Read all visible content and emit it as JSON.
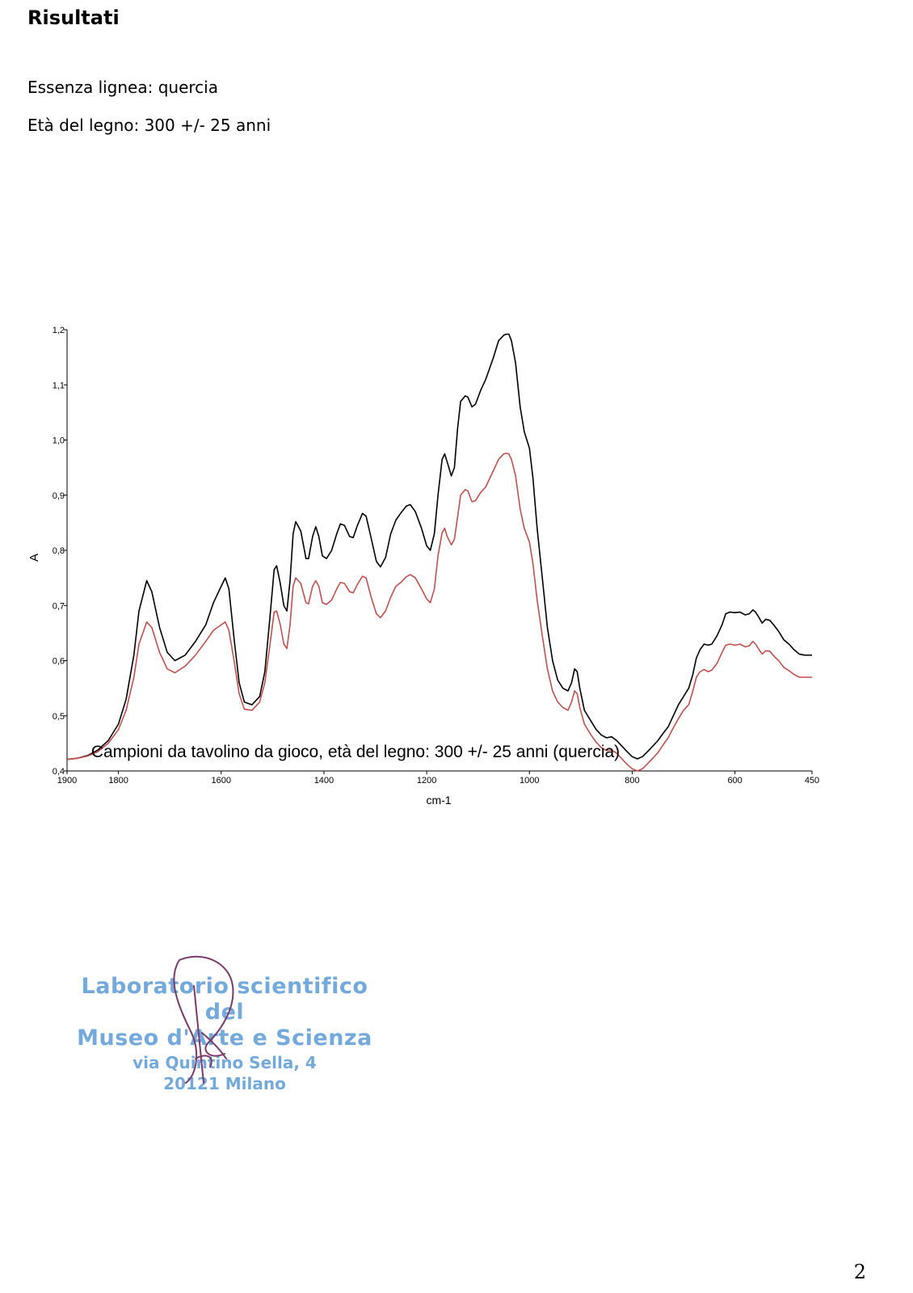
{
  "document": {
    "title": "Risultati",
    "lines": [
      "Essenza lignea: quercia",
      "Età del legno: 300 +/- 25 anni"
    ],
    "page_number": "2"
  },
  "stamp": {
    "line1": "Laboratorio scientifico del",
    "line2": "Museo d'Arte e Scienza",
    "line3": "via Quintino Sella, 4",
    "line4": "20121 Milano",
    "color": "#5b9bd5"
  },
  "chart_data": {
    "type": "line",
    "title": "Campioni da tavolino da gioco, età del legno: 300 +/- 25 anni (quercia)",
    "xlabel": "cm-1",
    "ylabel": "A",
    "xlim": [
      1900,
      450
    ],
    "ylim": [
      0.4,
      1.2
    ],
    "x_ticks": [
      1900,
      1800,
      1600,
      1400,
      1200,
      1000,
      800,
      600,
      450
    ],
    "y_ticks": [
      "0,4",
      "0,5",
      "0,6",
      "0,7",
      "0,8",
      "0,9",
      "1,0",
      "1,1",
      "1,2"
    ],
    "grid": false,
    "series": [
      {
        "color": "#000000",
        "points": [
          [
            1900,
            0.421
          ],
          [
            1880,
            0.423
          ],
          [
            1860,
            0.428
          ],
          [
            1840,
            0.438
          ],
          [
            1820,
            0.455
          ],
          [
            1800,
            0.485
          ],
          [
            1785,
            0.53
          ],
          [
            1770,
            0.61
          ],
          [
            1760,
            0.69
          ],
          [
            1745,
            0.745
          ],
          [
            1735,
            0.725
          ],
          [
            1720,
            0.66
          ],
          [
            1705,
            0.615
          ],
          [
            1690,
            0.6
          ],
          [
            1670,
            0.61
          ],
          [
            1650,
            0.635
          ],
          [
            1630,
            0.665
          ],
          [
            1615,
            0.705
          ],
          [
            1600,
            0.735
          ],
          [
            1592,
            0.75
          ],
          [
            1585,
            0.73
          ],
          [
            1575,
            0.64
          ],
          [
            1565,
            0.56
          ],
          [
            1555,
            0.525
          ],
          [
            1540,
            0.52
          ],
          [
            1525,
            0.535
          ],
          [
            1515,
            0.58
          ],
          [
            1505,
            0.68
          ],
          [
            1497,
            0.765
          ],
          [
            1492,
            0.772
          ],
          [
            1485,
            0.74
          ],
          [
            1478,
            0.7
          ],
          [
            1472,
            0.69
          ],
          [
            1466,
            0.745
          ],
          [
            1460,
            0.83
          ],
          [
            1455,
            0.852
          ],
          [
            1445,
            0.835
          ],
          [
            1435,
            0.785
          ],
          [
            1430,
            0.785
          ],
          [
            1422,
            0.825
          ],
          [
            1416,
            0.843
          ],
          [
            1410,
            0.825
          ],
          [
            1403,
            0.79
          ],
          [
            1395,
            0.785
          ],
          [
            1385,
            0.8
          ],
          [
            1375,
            0.83
          ],
          [
            1368,
            0.848
          ],
          [
            1360,
            0.845
          ],
          [
            1350,
            0.825
          ],
          [
            1343,
            0.823
          ],
          [
            1335,
            0.845
          ],
          [
            1325,
            0.867
          ],
          [
            1318,
            0.862
          ],
          [
            1308,
            0.822
          ],
          [
            1298,
            0.78
          ],
          [
            1290,
            0.77
          ],
          [
            1280,
            0.787
          ],
          [
            1270,
            0.83
          ],
          [
            1260,
            0.855
          ],
          [
            1250,
            0.868
          ],
          [
            1240,
            0.88
          ],
          [
            1232,
            0.883
          ],
          [
            1222,
            0.87
          ],
          [
            1210,
            0.84
          ],
          [
            1200,
            0.808
          ],
          [
            1193,
            0.8
          ],
          [
            1185,
            0.83
          ],
          [
            1178,
            0.9
          ],
          [
            1170,
            0.965
          ],
          [
            1165,
            0.975
          ],
          [
            1160,
            0.96
          ],
          [
            1152,
            0.935
          ],
          [
            1146,
            0.95
          ],
          [
            1140,
            1.02
          ],
          [
            1134,
            1.07
          ],
          [
            1125,
            1.08
          ],
          [
            1120,
            1.078
          ],
          [
            1112,
            1.06
          ],
          [
            1105,
            1.065
          ],
          [
            1095,
            1.09
          ],
          [
            1085,
            1.11
          ],
          [
            1070,
            1.15
          ],
          [
            1060,
            1.18
          ],
          [
            1050,
            1.19
          ],
          [
            1045,
            1.192
          ],
          [
            1040,
            1.192
          ],
          [
            1035,
            1.18
          ],
          [
            1027,
            1.14
          ],
          [
            1018,
            1.06
          ],
          [
            1010,
            1.015
          ],
          [
            1000,
            0.985
          ],
          [
            993,
            0.93
          ],
          [
            985,
            0.84
          ],
          [
            975,
            0.75
          ],
          [
            965,
            0.66
          ],
          [
            955,
            0.6
          ],
          [
            945,
            0.565
          ],
          [
            935,
            0.55
          ],
          [
            925,
            0.545
          ],
          [
            918,
            0.56
          ],
          [
            912,
            0.585
          ],
          [
            907,
            0.58
          ],
          [
            902,
            0.55
          ],
          [
            893,
            0.51
          ],
          [
            880,
            0.49
          ],
          [
            870,
            0.475
          ],
          [
            860,
            0.465
          ],
          [
            850,
            0.46
          ],
          [
            840,
            0.462
          ],
          [
            830,
            0.455
          ],
          [
            820,
            0.445
          ],
          [
            810,
            0.435
          ],
          [
            800,
            0.426
          ],
          [
            790,
            0.422
          ],
          [
            780,
            0.426
          ],
          [
            770,
            0.435
          ],
          [
            760,
            0.445
          ],
          [
            750,
            0.455
          ],
          [
            740,
            0.468
          ],
          [
            730,
            0.48
          ],
          [
            720,
            0.5
          ],
          [
            710,
            0.52
          ],
          [
            700,
            0.535
          ],
          [
            690,
            0.55
          ],
          [
            682,
            0.575
          ],
          [
            675,
            0.605
          ],
          [
            668,
            0.62
          ],
          [
            660,
            0.63
          ],
          [
            652,
            0.628
          ],
          [
            645,
            0.63
          ],
          [
            635,
            0.645
          ],
          [
            625,
            0.665
          ],
          [
            618,
            0.685
          ],
          [
            610,
            0.688
          ],
          [
            600,
            0.687
          ],
          [
            590,
            0.688
          ],
          [
            580,
            0.683
          ],
          [
            572,
            0.685
          ],
          [
            565,
            0.692
          ],
          [
            560,
            0.688
          ],
          [
            553,
            0.678
          ],
          [
            547,
            0.668
          ],
          [
            540,
            0.675
          ],
          [
            532,
            0.673
          ],
          [
            523,
            0.663
          ],
          [
            515,
            0.653
          ],
          [
            505,
            0.638
          ],
          [
            495,
            0.63
          ],
          [
            485,
            0.62
          ],
          [
            475,
            0.612
          ],
          [
            465,
            0.61
          ],
          [
            455,
            0.61
          ],
          [
            450,
            0.61
          ]
        ]
      },
      {
        "color": "#c0504d",
        "points": [
          [
            1900,
            0.421
          ],
          [
            1880,
            0.423
          ],
          [
            1860,
            0.427
          ],
          [
            1840,
            0.435
          ],
          [
            1820,
            0.45
          ],
          [
            1800,
            0.475
          ],
          [
            1785,
            0.51
          ],
          [
            1770,
            0.57
          ],
          [
            1760,
            0.63
          ],
          [
            1745,
            0.67
          ],
          [
            1735,
            0.66
          ],
          [
            1720,
            0.615
          ],
          [
            1705,
            0.585
          ],
          [
            1690,
            0.578
          ],
          [
            1670,
            0.59
          ],
          [
            1650,
            0.61
          ],
          [
            1630,
            0.635
          ],
          [
            1615,
            0.655
          ],
          [
            1600,
            0.665
          ],
          [
            1592,
            0.67
          ],
          [
            1585,
            0.655
          ],
          [
            1575,
            0.6
          ],
          [
            1565,
            0.54
          ],
          [
            1555,
            0.512
          ],
          [
            1540,
            0.51
          ],
          [
            1525,
            0.525
          ],
          [
            1515,
            0.56
          ],
          [
            1505,
            0.63
          ],
          [
            1497,
            0.688
          ],
          [
            1492,
            0.69
          ],
          [
            1485,
            0.665
          ],
          [
            1478,
            0.63
          ],
          [
            1472,
            0.622
          ],
          [
            1466,
            0.665
          ],
          [
            1460,
            0.735
          ],
          [
            1455,
            0.75
          ],
          [
            1445,
            0.74
          ],
          [
            1435,
            0.705
          ],
          [
            1430,
            0.703
          ],
          [
            1422,
            0.735
          ],
          [
            1416,
            0.745
          ],
          [
            1410,
            0.735
          ],
          [
            1403,
            0.705
          ],
          [
            1395,
            0.702
          ],
          [
            1385,
            0.71
          ],
          [
            1375,
            0.73
          ],
          [
            1368,
            0.742
          ],
          [
            1360,
            0.74
          ],
          [
            1350,
            0.725
          ],
          [
            1343,
            0.723
          ],
          [
            1335,
            0.738
          ],
          [
            1325,
            0.753
          ],
          [
            1318,
            0.75
          ],
          [
            1308,
            0.715
          ],
          [
            1298,
            0.685
          ],
          [
            1290,
            0.678
          ],
          [
            1280,
            0.69
          ],
          [
            1270,
            0.715
          ],
          [
            1260,
            0.735
          ],
          [
            1250,
            0.742
          ],
          [
            1240,
            0.752
          ],
          [
            1232,
            0.756
          ],
          [
            1222,
            0.75
          ],
          [
            1210,
            0.73
          ],
          [
            1200,
            0.712
          ],
          [
            1193,
            0.705
          ],
          [
            1185,
            0.73
          ],
          [
            1178,
            0.79
          ],
          [
            1170,
            0.832
          ],
          [
            1165,
            0.84
          ],
          [
            1160,
            0.825
          ],
          [
            1152,
            0.81
          ],
          [
            1146,
            0.82
          ],
          [
            1140,
            0.86
          ],
          [
            1134,
            0.9
          ],
          [
            1125,
            0.91
          ],
          [
            1120,
            0.908
          ],
          [
            1112,
            0.888
          ],
          [
            1105,
            0.89
          ],
          [
            1095,
            0.905
          ],
          [
            1085,
            0.915
          ],
          [
            1070,
            0.945
          ],
          [
            1060,
            0.965
          ],
          [
            1050,
            0.975
          ],
          [
            1045,
            0.976
          ],
          [
            1040,
            0.975
          ],
          [
            1035,
            0.965
          ],
          [
            1027,
            0.935
          ],
          [
            1018,
            0.875
          ],
          [
            1010,
            0.84
          ],
          [
            1000,
            0.815
          ],
          [
            993,
            0.775
          ],
          [
            985,
            0.71
          ],
          [
            975,
            0.645
          ],
          [
            965,
            0.585
          ],
          [
            955,
            0.545
          ],
          [
            945,
            0.525
          ],
          [
            935,
            0.515
          ],
          [
            925,
            0.51
          ],
          [
            918,
            0.525
          ],
          [
            912,
            0.545
          ],
          [
            907,
            0.54
          ],
          [
            902,
            0.515
          ],
          [
            893,
            0.485
          ],
          [
            880,
            0.465
          ],
          [
            870,
            0.452
          ],
          [
            860,
            0.442
          ],
          [
            850,
            0.437
          ],
          [
            840,
            0.438
          ],
          [
            830,
            0.432
          ],
          [
            820,
            0.422
          ],
          [
            810,
            0.412
          ],
          [
            800,
            0.404
          ],
          [
            790,
            0.4
          ],
          [
            780,
            0.404
          ],
          [
            770,
            0.413
          ],
          [
            760,
            0.423
          ],
          [
            750,
            0.433
          ],
          [
            740,
            0.447
          ],
          [
            730,
            0.46
          ],
          [
            720,
            0.478
          ],
          [
            710,
            0.495
          ],
          [
            700,
            0.51
          ],
          [
            690,
            0.52
          ],
          [
            682,
            0.545
          ],
          [
            675,
            0.57
          ],
          [
            668,
            0.58
          ],
          [
            660,
            0.584
          ],
          [
            652,
            0.58
          ],
          [
            645,
            0.583
          ],
          [
            635,
            0.595
          ],
          [
            625,
            0.615
          ],
          [
            618,
            0.628
          ],
          [
            610,
            0.63
          ],
          [
            600,
            0.628
          ],
          [
            590,
            0.63
          ],
          [
            580,
            0.625
          ],
          [
            572,
            0.627
          ],
          [
            565,
            0.635
          ],
          [
            560,
            0.63
          ],
          [
            553,
            0.62
          ],
          [
            547,
            0.612
          ],
          [
            540,
            0.618
          ],
          [
            532,
            0.617
          ],
          [
            523,
            0.607
          ],
          [
            515,
            0.6
          ],
          [
            505,
            0.588
          ],
          [
            495,
            0.582
          ],
          [
            485,
            0.575
          ],
          [
            475,
            0.57
          ],
          [
            465,
            0.57
          ],
          [
            455,
            0.57
          ],
          [
            450,
            0.57
          ]
        ]
      }
    ]
  }
}
